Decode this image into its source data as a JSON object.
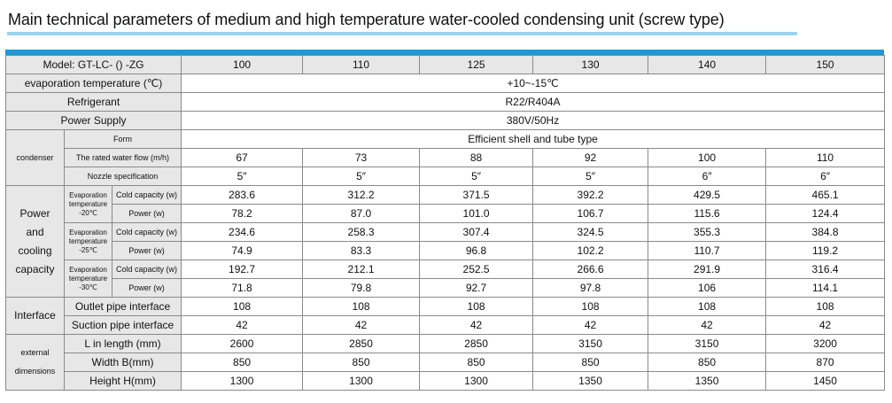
{
  "title": "Main technical parameters of medium and high temperature water-cooled condensing unit (screw type)",
  "header": {
    "label": "Model: GT-LC- () -ZG",
    "models": [
      "100",
      "110",
      "125",
      "130",
      "140",
      "150"
    ]
  },
  "common": {
    "evap_label": "evaporation temperature (℃)",
    "evap_value": "+10~-15℃",
    "refrigerant_label": "Refrigerant",
    "refrigerant_value": "R22/R404A",
    "power_supply_label": "Power Supply",
    "power_supply_value": "380V/50Hz"
  },
  "condenser": {
    "group": "condenser",
    "form_label": "Form",
    "form_value": "Efficient shell and tube type",
    "flow_label": "The rated water flow (m/h)",
    "flow_values": [
      "67",
      "73",
      "88",
      "92",
      "100",
      "110"
    ],
    "nozzle_label": "Nozzle specification",
    "nozzle_values": [
      "5″",
      "5″",
      "5″",
      "5″",
      "6″",
      "6″"
    ]
  },
  "capacity": {
    "group_lines": [
      "Power",
      "and",
      "cooling",
      "capacity"
    ],
    "cold_label": "Cold capacity (w)",
    "power_label": "Power (w)",
    "blocks": [
      {
        "evap_lines": [
          "Evaporation",
          "temperature",
          "-20℃"
        ],
        "cold_values": [
          "283.6",
          "312.2",
          "371.5",
          "392.2",
          "429.5",
          "465.1"
        ],
        "power_values": [
          "78.2",
          "87.0",
          "101.0",
          "106.7",
          "115.6",
          "124.4"
        ]
      },
      {
        "evap_lines": [
          "Evaporation",
          "temperature",
          "-25℃"
        ],
        "cold_values": [
          "234.6",
          "258.3",
          "307.4",
          "324.5",
          "355.3",
          "384.8"
        ],
        "power_values": [
          "74.9",
          "83.3",
          "96.8",
          "102.2",
          "110.7",
          "119.2"
        ]
      },
      {
        "evap_lines": [
          "Evaporation",
          "temperature",
          "-30℃"
        ],
        "cold_values": [
          "192.7",
          "212.1",
          "252.5",
          "266.6",
          "291.9",
          "316.4"
        ],
        "power_values": [
          "71.8",
          "79.8",
          "92.7",
          "97.8",
          "106",
          "114.1"
        ]
      }
    ]
  },
  "interface": {
    "group": "Interface",
    "outlet_label": "Outlet pipe interface",
    "outlet_values": [
      "108",
      "108",
      "108",
      "108",
      "108",
      "108"
    ],
    "suction_label": "Suction pipe interface",
    "suction_values": [
      "42",
      "42",
      "42",
      "42",
      "42",
      "42"
    ]
  },
  "dimensions": {
    "group_lines": [
      "external",
      "dimensions"
    ],
    "length_label": "L in length (mm)",
    "length_values": [
      "2600",
      "2850",
      "2850",
      "3150",
      "3150",
      "3200"
    ],
    "width_label": "Width B(mm)",
    "width_values": [
      "850",
      "850",
      "850",
      "850",
      "850",
      "870"
    ],
    "height_label": "Height H(mm)",
    "height_values": [
      "1300",
      "1300",
      "1300",
      "1350",
      "1350",
      "1450"
    ]
  },
  "colors": {
    "title_bar": "#9ad3ef",
    "top_band": "#1a9ad7",
    "header_bg": "#e7e7e7",
    "border": "#8a8a8a"
  }
}
